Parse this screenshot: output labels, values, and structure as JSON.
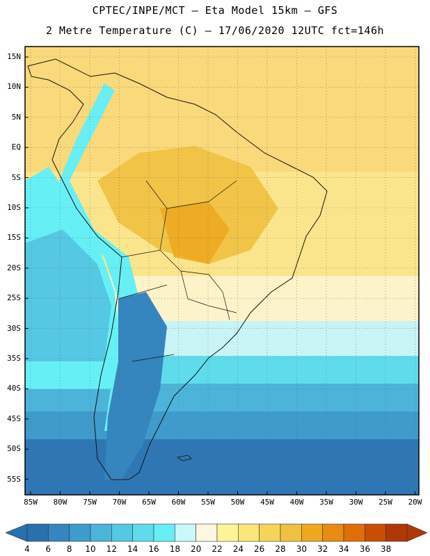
{
  "header": {
    "line1": "CPTEC/INPE/MCT –  Eta Model 15km – GFS",
    "line2": "2 Metre Temperature (C) – 17/06/2020 12UTC fct=146h"
  },
  "map": {
    "region": "South America",
    "lat_labels": [
      "15N",
      "10N",
      "5N",
      "EQ",
      "5S",
      "10S",
      "15S",
      "20S",
      "25S",
      "30S",
      "35S",
      "40S",
      "45S",
      "50S",
      "55S"
    ],
    "lon_labels": [
      "85W",
      "80W",
      "75W",
      "70W",
      "65W",
      "60W",
      "55W",
      "50W",
      "45W",
      "40W",
      "35W",
      "30W",
      "25W",
      "20W"
    ]
  },
  "colorbar": {
    "labels": [
      "4",
      "6",
      "8",
      "10",
      "12",
      "14",
      "16",
      "18",
      "20",
      "22",
      "24",
      "26",
      "28",
      "30",
      "32",
      "34",
      "36",
      "38"
    ],
    "colors": [
      "#2a6fae",
      "#3585bf",
      "#3f9bcc",
      "#4cb3d9",
      "#55c8e3",
      "#5fdcec",
      "#66f0f5",
      "#c9f7fa",
      "#fdf6e0",
      "#fdf49a",
      "#fbe67a",
      "#f6d45a",
      "#f0c040",
      "#eda820",
      "#e78c10",
      "#de6e08",
      "#c94e04",
      "#b03808"
    ],
    "low_color": "#2a6fae",
    "high_color": "#b03808"
  }
}
